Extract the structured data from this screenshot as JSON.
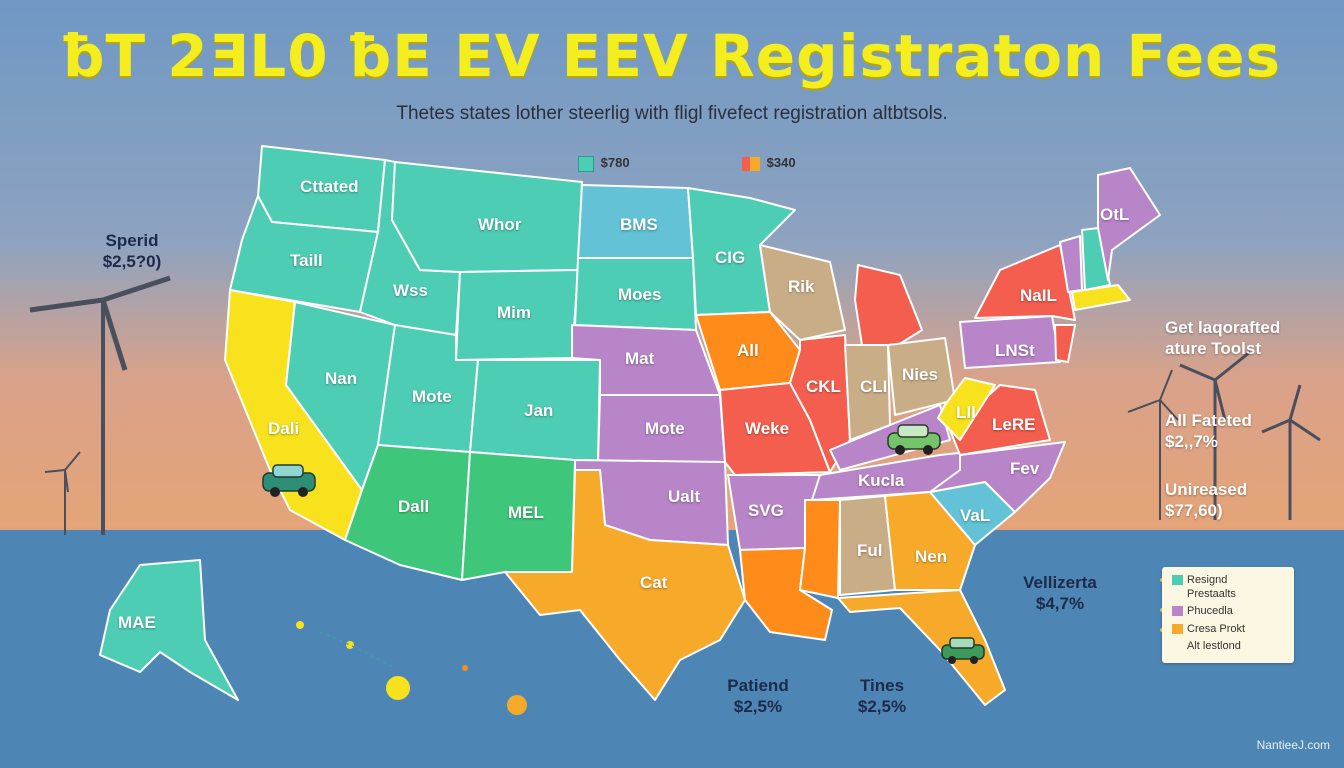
{
  "title": "ƀT 2ƎL0 ƀE EV EEV Registraton Fees",
  "subtitle": "Thetes states lother steerlig with fligl fivefect registration altbtsols.",
  "colors": {
    "teal": "#4ecdb5",
    "green": "#3ec77a",
    "yellow": "#f7e21d",
    "orange": "#ff8c1a",
    "amber": "#f7a92a",
    "purple": "#b985c9",
    "red": "#f45e4e",
    "tan": "#c9ad86",
    "light_blue": "#63c2d6",
    "ocean": "#4d86b4"
  },
  "key": [
    {
      "color": "#4ecdb5",
      "label": "$780"
    },
    {
      "color": "#f7a92a",
      "label": "$340"
    }
  ],
  "states": {
    "wa": "Cttated",
    "or": "Taill",
    "ca": "Dali",
    "nv": "Nan",
    "id": "Wss",
    "mt": "Whor",
    "wy": "Mim",
    "ut": "Mote",
    "co": "Jan",
    "az": "Dall",
    "nm": "MEL",
    "nd": "BMS",
    "sd": "Moes",
    "ne": "Mat",
    "ks": "Mote",
    "ok": "Ualt",
    "tx": "Cat",
    "mn": "CIG",
    "ia": "All",
    "mo": "Weke",
    "ar": "SVG",
    "la": "",
    "wi": "Rik",
    "il": "CKL",
    "mi": "",
    "in": "CLI",
    "oh": "Nies",
    "ky": "",
    "tn": "Kucla",
    "ms": "",
    "al": "Ful",
    "ga": "Nen",
    "fl": "",
    "sc": "VaL",
    "nc": "Fev",
    "va": "LeRE",
    "wv": "Lll",
    "pa": "LNSt",
    "ny": "NaIL",
    "me": "OtL",
    "ak": "MAE"
  },
  "callouts": [
    {
      "title": "Sperid",
      "value": "$2,5?0)"
    },
    {
      "title": "Get laqorafted",
      "value": "ature Toolst"
    },
    {
      "title": "All Fateted",
      "value": "$2,,7%"
    },
    {
      "title": "Unireased",
      "value": "$77,60)"
    },
    {
      "title": "Vellizerta",
      "value": "$4,7%"
    },
    {
      "title": "Patiend",
      "value": "$2,5%"
    },
    {
      "title": "Tines",
      "value": "$2,5%"
    }
  ],
  "legend": [
    {
      "color": "#4ecdb5",
      "label": "Resignd"
    },
    {
      "color": "",
      "label": "Prestaalts"
    },
    {
      "color": "#b985c9",
      "label": "Phucedla"
    },
    {
      "color": "#f7a92a",
      "label": "Cresa Prokt"
    },
    {
      "color": "",
      "label": "Alt lestlond"
    }
  ],
  "footer": "NantieeJ.com"
}
